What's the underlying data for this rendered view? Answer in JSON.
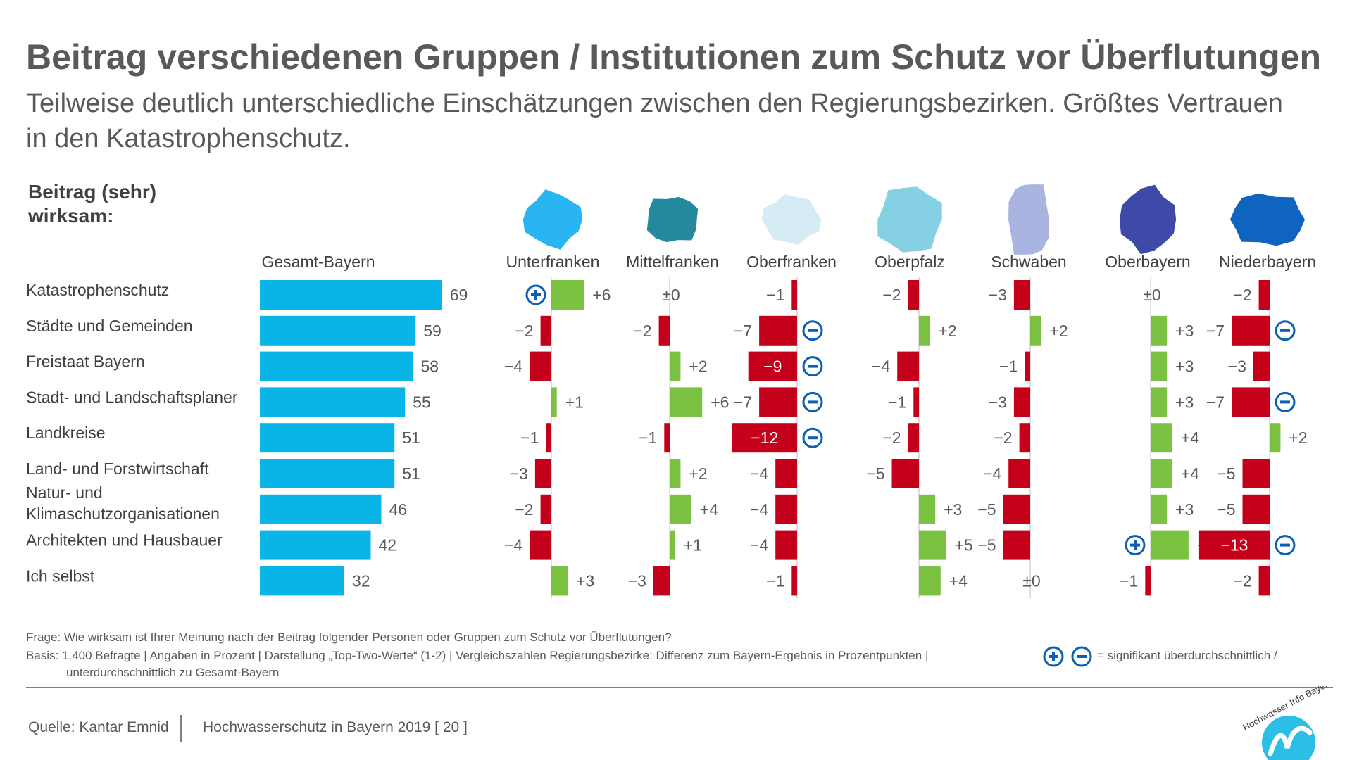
{
  "title": "Beitrag verschiedenen Gruppen / Institutionen zum Schutz vor Überflutungen",
  "subtitle": "Teilweise deutlich unterschiedliche Einschätzungen zwischen den Regierungsbezirken. Größtes Vertrauen in den Katastrophenschutz.",
  "metric_label": "Beitrag (sehr)\nwirksam:",
  "chart_data": {
    "type": "bar",
    "categories": [
      "Katastrophenschutz",
      "Städte und Gemeinden",
      "Freistaat Bayern",
      "Stadt- und Landschaftsplaner",
      "Landkreise",
      "Land- und Forstwirtschaft",
      "Natur- und\nKlimaschutzorganisationen",
      "Architekten und Hausbauer",
      "Ich selbst"
    ],
    "main_series": {
      "name": "Gesamt-Bayern",
      "values": [
        69,
        59,
        58,
        55,
        51,
        51,
        46,
        42,
        32
      ]
    },
    "regions": [
      {
        "name": "Unterfranken",
        "color": "#29b5f1",
        "values": [
          6,
          -2,
          -4,
          1,
          -1,
          -3,
          -2,
          -4,
          3
        ],
        "labels": [
          "+6",
          "−2",
          "−4",
          "+1",
          "−1",
          "−3",
          "−2",
          "−4",
          "+3"
        ],
        "marks": [
          "plus",
          "",
          "",
          "",
          "",
          "",
          "",
          "",
          ""
        ]
      },
      {
        "name": "Mittelfranken",
        "color": "#24899e",
        "values": [
          0,
          -2,
          2,
          6,
          -1,
          2,
          4,
          1,
          -3
        ],
        "labels": [
          "±0",
          "−2",
          "+2",
          "+6",
          "−1",
          "+2",
          "+4",
          "+1",
          "−3"
        ],
        "marks": [
          "",
          "",
          "",
          "",
          "",
          "",
          "",
          "",
          ""
        ]
      },
      {
        "name": "Oberfranken",
        "color": "#d6ecf5",
        "values": [
          -1,
          -7,
          -9,
          -7,
          -12,
          -4,
          -4,
          -4,
          -1
        ],
        "labels": [
          "−1",
          "−7",
          "−9",
          "−7",
          "−12",
          "−4",
          "−4",
          "−4",
          "−1"
        ],
        "marks": [
          "",
          "minus",
          "minus",
          "minus",
          "minus",
          "",
          "",
          "",
          ""
        ]
      },
      {
        "name": "Oberpfalz",
        "color": "#86d0e3",
        "values": [
          -2,
          2,
          -4,
          -1,
          -2,
          -5,
          3,
          5,
          4
        ],
        "labels": [
          "−2",
          "+2",
          "−4",
          "−1",
          "−2",
          "−5",
          "+3",
          "+5",
          "+4"
        ],
        "marks": [
          "",
          "",
          "",
          "",
          "",
          "",
          "",
          "",
          ""
        ]
      },
      {
        "name": "Schwaben",
        "color": "#aab4e0",
        "values": [
          -3,
          2,
          -1,
          -3,
          -2,
          -4,
          -5,
          -5,
          0
        ],
        "labels": [
          "−3",
          "+2",
          "−1",
          "−3",
          "−2",
          "−4",
          "−5",
          "−5",
          "±0"
        ],
        "marks": [
          "",
          "",
          "",
          "",
          "",
          "",
          "",
          "",
          ""
        ]
      },
      {
        "name": "Oberbayern",
        "color": "#3f4aa8",
        "values": [
          0,
          3,
          3,
          3,
          4,
          4,
          3,
          7,
          -1
        ],
        "labels": [
          "±0",
          "+3",
          "+3",
          "+3",
          "+4",
          "+4",
          "+3",
          "+7",
          "−1"
        ],
        "marks": [
          "",
          "",
          "",
          "",
          "",
          "",
          "",
          "plus",
          ""
        ]
      },
      {
        "name": "Niederbayern",
        "color": "#0f64c0",
        "values": [
          -2,
          -7,
          -3,
          -7,
          2,
          -5,
          -5,
          -13,
          -2
        ],
        "labels": [
          "−2",
          "−7",
          "−3",
          "−7",
          "+2",
          "−5",
          "−5",
          "−13",
          "−2"
        ],
        "marks": [
          "",
          "minus",
          "",
          "minus",
          "",
          "",
          "",
          "minus",
          ""
        ]
      }
    ],
    "colors": {
      "main": "#0ab4e6",
      "positive": "#7cc242",
      "negative": "#c5001a",
      "significance": "#0b5fb4"
    }
  },
  "footnote": {
    "question": "Frage: Wie wirksam ist Ihrer Meinung nach der Beitrag folgender Personen oder Gruppen zum Schutz vor Überflutungen?",
    "basis": "Basis: 1.400 Befragte  | Angaben in Prozent  |  Darstellung „Top-Two-Werte“ (1-2)  |  Vergleichszahlen Regierungsbezirke: Differenz zum Bayern-Ergebnis in Prozentpunkten |",
    "legend_text": "= signifikant überdurchschnittlich /",
    "legend_text2": "unterdurchschnittlich zu Gesamt-Bayern"
  },
  "source": "Quelle: Kantar Emnid",
  "publication": "Hochwasserschutz in Bayern 2019 [ 20 ]",
  "logo_text": "Hochwasser Info Bayern"
}
